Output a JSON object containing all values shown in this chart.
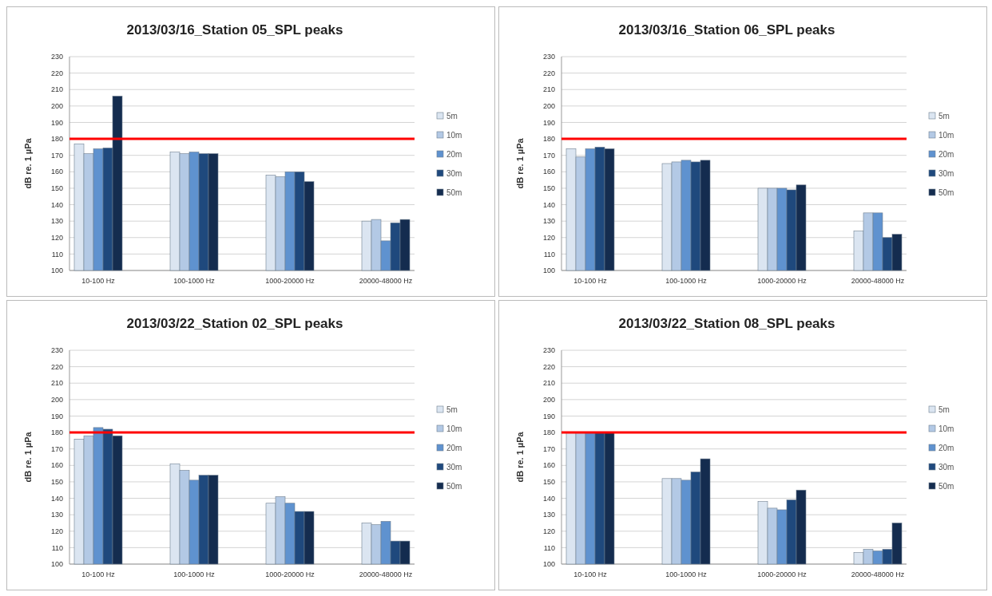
{
  "chart_data": [
    {
      "type": "bar",
      "title": "2013/03/16_Station 05_SPL peaks",
      "ylabel": "dB re. 1 µPa",
      "categories": [
        "10-100 Hz",
        "100-1000 Hz",
        "1000-20000 Hz",
        "20000-48000 Hz"
      ],
      "series": [
        {
          "name": "5m",
          "color": "#dbe5f1",
          "values": [
            177,
            172,
            158,
            130
          ]
        },
        {
          "name": "10m",
          "color": "#b3c9e5",
          "values": [
            171,
            171,
            157,
            131
          ]
        },
        {
          "name": "20m",
          "color": "#5f92cf",
          "values": [
            174,
            172,
            160,
            118
          ]
        },
        {
          "name": "30m",
          "color": "#1f497d",
          "values": [
            174.5,
            171,
            160,
            129
          ]
        },
        {
          "name": "50m",
          "color": "#142c4f",
          "values": [
            206,
            171,
            154,
            131
          ]
        }
      ],
      "ylim": [
        100,
        230
      ],
      "yticks": [
        100,
        110,
        120,
        130,
        140,
        150,
        160,
        170,
        180,
        190,
        200,
        210,
        220,
        230
      ],
      "grid": "y",
      "legend": "right",
      "ref_lines": [
        {
          "axis": "y",
          "value": 180,
          "color": "#ff0000"
        }
      ]
    },
    {
      "type": "bar",
      "title": "2013/03/16_Station 06_SPL peaks",
      "ylabel": "dB re. 1 µPa",
      "categories": [
        "10-100 Hz",
        "100-1000 Hz",
        "1000-20000 Hz",
        "20000-48000 Hz"
      ],
      "series": [
        {
          "name": "5m",
          "color": "#dbe5f1",
          "values": [
            174,
            165,
            150,
            124
          ]
        },
        {
          "name": "10m",
          "color": "#b3c9e5",
          "values": [
            169,
            166,
            150,
            135
          ]
        },
        {
          "name": "20m",
          "color": "#5f92cf",
          "values": [
            174,
            167,
            150,
            135
          ]
        },
        {
          "name": "30m",
          "color": "#1f497d",
          "values": [
            175,
            166,
            149,
            120
          ]
        },
        {
          "name": "50m",
          "color": "#142c4f",
          "values": [
            174,
            167,
            152,
            122
          ]
        }
      ],
      "ylim": [
        100,
        230
      ],
      "yticks": [
        100,
        110,
        120,
        130,
        140,
        150,
        160,
        170,
        180,
        190,
        200,
        210,
        220,
        230
      ],
      "grid": "y",
      "legend": "right",
      "ref_lines": [
        {
          "axis": "y",
          "value": 180,
          "color": "#ff0000"
        }
      ]
    },
    {
      "type": "bar",
      "title": "2013/03/22_Station 02_SPL peaks",
      "ylabel": "dB re. 1 µPa",
      "categories": [
        "10-100 Hz",
        "100-1000 Hz",
        "1000-20000 Hz",
        "20000-48000 Hz"
      ],
      "series": [
        {
          "name": "5m",
          "color": "#dbe5f1",
          "values": [
            176,
            161,
            137,
            125
          ]
        },
        {
          "name": "10m",
          "color": "#b3c9e5",
          "values": [
            178,
            157,
            141,
            124
          ]
        },
        {
          "name": "20m",
          "color": "#5f92cf",
          "values": [
            183,
            151,
            137,
            126
          ]
        },
        {
          "name": "30m",
          "color": "#1f497d",
          "values": [
            182,
            154,
            132,
            114
          ]
        },
        {
          "name": "50m",
          "color": "#142c4f",
          "values": [
            178,
            154,
            132,
            114
          ]
        }
      ],
      "ylim": [
        100,
        230
      ],
      "yticks": [
        100,
        110,
        120,
        130,
        140,
        150,
        160,
        170,
        180,
        190,
        200,
        210,
        220,
        230
      ],
      "grid": "y",
      "legend": "right",
      "ref_lines": [
        {
          "axis": "y",
          "value": 180,
          "color": "#ff0000"
        }
      ]
    },
    {
      "type": "bar",
      "title": "2013/03/22_Station 08_SPL peaks",
      "ylabel": "dB re. 1 µPa",
      "categories": [
        "10-100 Hz",
        "100-1000 Hz",
        "1000-20000 Hz",
        "20000-48000 Hz"
      ],
      "series": [
        {
          "name": "5m",
          "color": "#dbe5f1",
          "values": [
            180,
            152,
            138,
            107
          ]
        },
        {
          "name": "10m",
          "color": "#b3c9e5",
          "values": [
            180,
            152,
            134,
            109
          ]
        },
        {
          "name": "20m",
          "color": "#5f92cf",
          "values": [
            180,
            151,
            133,
            108
          ]
        },
        {
          "name": "30m",
          "color": "#1f497d",
          "values": [
            180,
            156,
            139,
            109
          ]
        },
        {
          "name": "50m",
          "color": "#142c4f",
          "values": [
            180,
            164,
            145,
            125
          ]
        }
      ],
      "ylim": [
        100,
        230
      ],
      "yticks": [
        100,
        110,
        120,
        130,
        140,
        150,
        160,
        170,
        180,
        190,
        200,
        210,
        220,
        230
      ],
      "grid": "y",
      "legend": "right",
      "ref_lines": [
        {
          "axis": "y",
          "value": 180,
          "color": "#ff0000"
        }
      ]
    }
  ]
}
